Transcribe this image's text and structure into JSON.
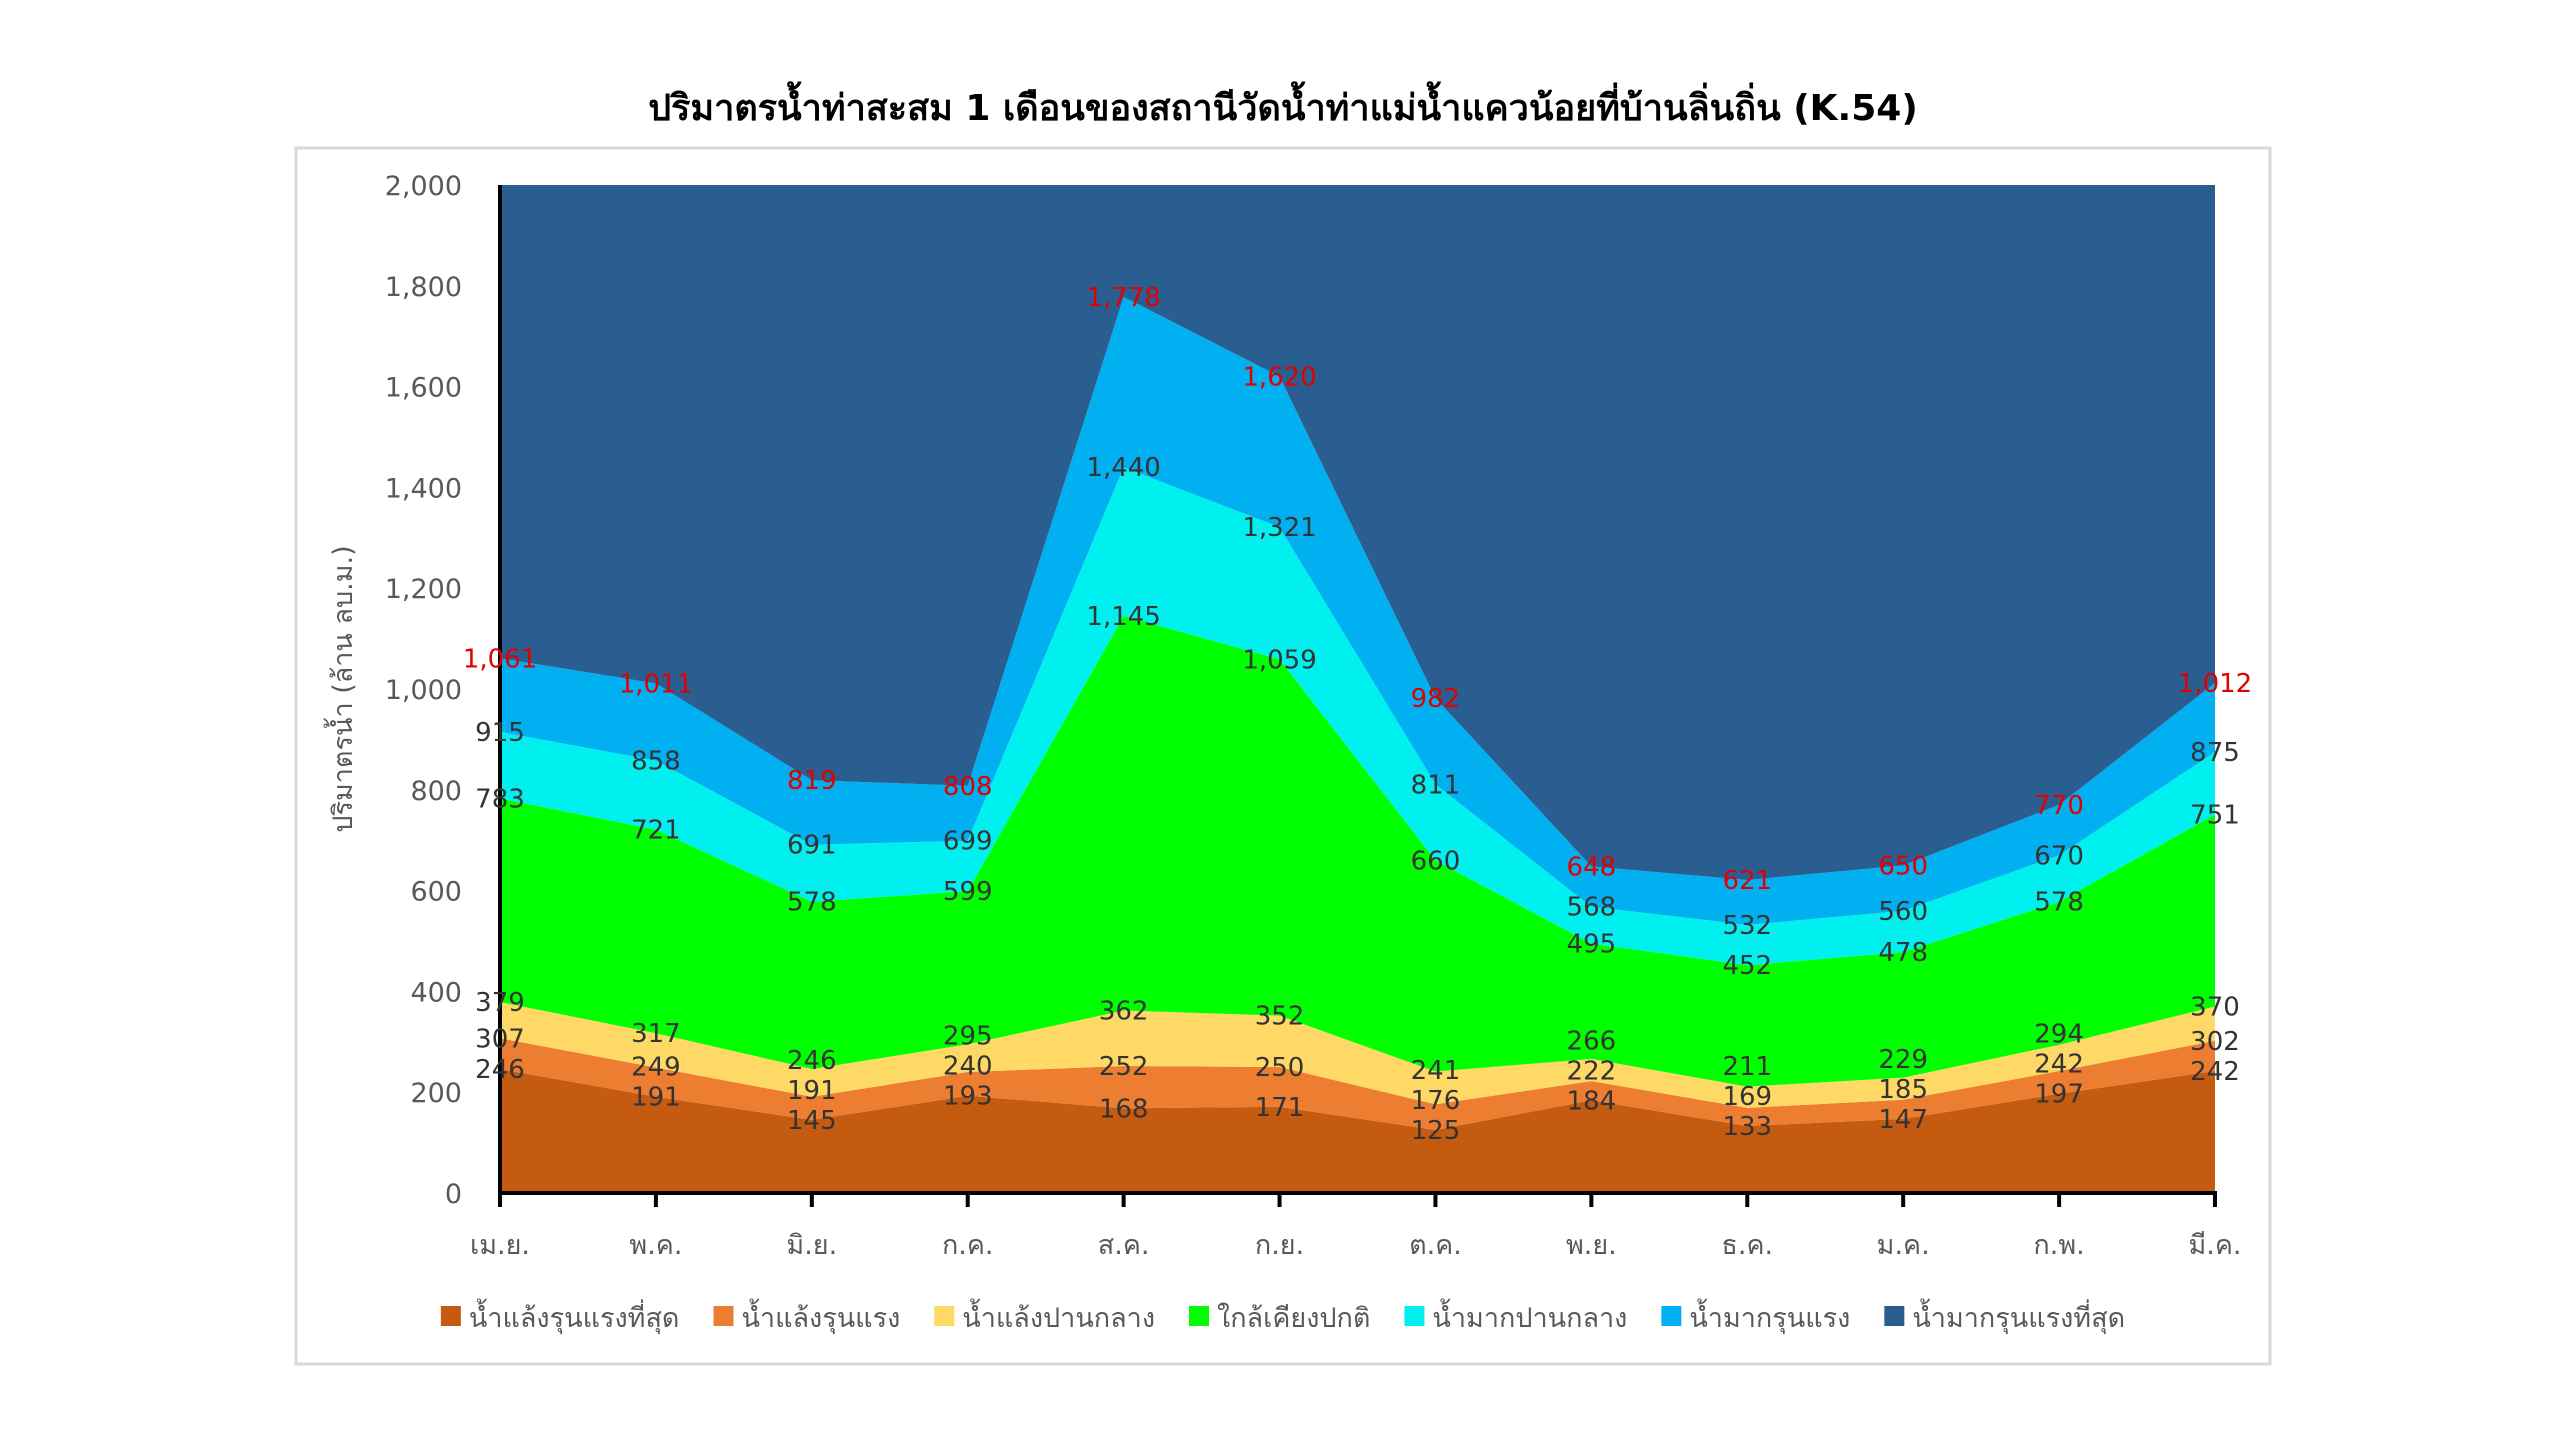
{
  "chart_data": {
    "type": "area",
    "stacked": true,
    "title": "ปริมาตรน้ำท่าสะสม 1 เดือนของสถานีวัดน้ำท่าแม่น้ำแควน้อยที่บ้านลิ่นถิ่น (K.54)",
    "xlabel": "",
    "ylabel": "ปริมาตรน้ำ (ล้าน ลบ.ม.)",
    "ylim": [
      0,
      2000
    ],
    "yticks": [
      0,
      200,
      400,
      600,
      800,
      1000,
      1200,
      1400,
      1600,
      1800,
      2000
    ],
    "ytick_labels": [
      "0",
      "200",
      "400",
      "600",
      "800",
      "1,000",
      "1,200",
      "1,400",
      "1,600",
      "1,800",
      "2,000"
    ],
    "categories": [
      "เม.ย.",
      "พ.ค.",
      "มิ.ย.",
      "ก.ค.",
      "ส.ค.",
      "ก.ย.",
      "ต.ค.",
      "พ.ย.",
      "ธ.ค.",
      "ม.ค.",
      "ก.พ.",
      "มี.ค."
    ],
    "grid": false,
    "legend_position": "bottom",
    "value_meaning": "upper boundary of each band (cumulative)",
    "series": [
      {
        "name": "น้ำแล้งรุนแรงที่สุด",
        "color": "#C55A11",
        "label_color": "#333333",
        "upper": [
          246,
          191,
          145,
          193,
          168,
          171,
          125,
          184,
          133,
          147,
          197,
          242
        ]
      },
      {
        "name": "น้ำแล้งรุนแรง",
        "color": "#ED7D31",
        "label_color": "#333333",
        "upper": [
          307,
          249,
          191,
          240,
          252,
          250,
          176,
          222,
          169,
          185,
          242,
          302
        ]
      },
      {
        "name": "น้ำแล้งปานกลาง",
        "color": "#FFD966",
        "label_color": "#333333",
        "upper": [
          379,
          317,
          246,
          295,
          362,
          352,
          241,
          266,
          211,
          229,
          294,
          370
        ]
      },
      {
        "name": "ใกล้เคียงปกติ",
        "color": "#00FF00",
        "label_color": "#333333",
        "upper": [
          783,
          721,
          578,
          599,
          1145,
          1059,
          660,
          495,
          452,
          478,
          578,
          751
        ]
      },
      {
        "name": "น้ำมากปานกลาง",
        "color": "#00F0F0",
        "label_color": "#333333",
        "upper": [
          915,
          858,
          691,
          699,
          1440,
          1321,
          811,
          568,
          532,
          560,
          670,
          875
        ]
      },
      {
        "name": "น้ำมากรุนแรง",
        "color": "#00B0F0",
        "label_color": "#E00000",
        "upper": [
          1061,
          1011,
          819,
          808,
          1778,
          1620,
          982,
          648,
          621,
          650,
          770,
          1012
        ]
      },
      {
        "name": "น้ำมากรุนแรงที่สุด",
        "color": "#2A5E91",
        "label_color": null,
        "upper": [
          2000,
          2000,
          2000,
          2000,
          2000,
          2000,
          2000,
          2000,
          2000,
          2000,
          2000,
          2000
        ]
      }
    ]
  }
}
